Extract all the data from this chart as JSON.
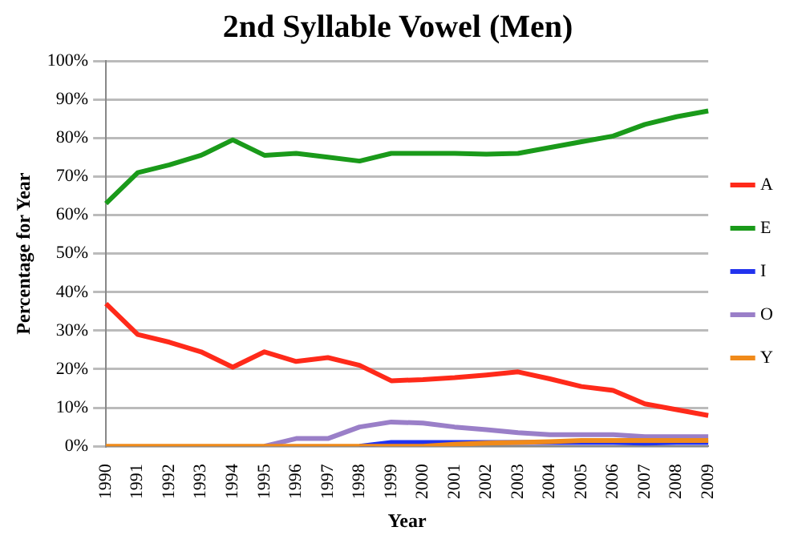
{
  "chart_data": {
    "type": "line",
    "title": "2nd Syllable Vowel (Men)",
    "xlabel": "Year",
    "ylabel": "Percentage for Year",
    "categories": [
      "1990",
      "1991",
      "1992",
      "1993",
      "1994",
      "1995",
      "1996",
      "1997",
      "1998",
      "1999",
      "2000",
      "2001",
      "2002",
      "2003",
      "2004",
      "2005",
      "2006",
      "2007",
      "2008",
      "2009"
    ],
    "series": [
      {
        "name": "A",
        "color": "#ff2a1a",
        "values": [
          37,
          29,
          27,
          24.5,
          20.5,
          24.5,
          22,
          23,
          21,
          17,
          17.3,
          17.8,
          18.5,
          19.3,
          17.5,
          15.5,
          14.5,
          11,
          9.5,
          8
        ]
      },
      {
        "name": "E",
        "color": "#1a9a1a",
        "values": [
          63,
          71,
          73,
          75.5,
          79.5,
          75.5,
          76,
          75,
          74,
          76,
          76,
          76,
          75.8,
          76,
          77.5,
          79,
          80.5,
          83.5,
          85.5,
          87
        ]
      },
      {
        "name": "I",
        "color": "#2233ee",
        "values": [
          null,
          null,
          null,
          null,
          null,
          null,
          null,
          null,
          0,
          1,
          1,
          1,
          1,
          1,
          1,
          1,
          1,
          0.8,
          1,
          1
        ]
      },
      {
        "name": "O",
        "color": "#9a7fc8",
        "values": [
          null,
          null,
          null,
          null,
          null,
          0,
          2,
          2,
          5,
          6.3,
          6,
          5,
          4.3,
          3.5,
          3,
          3,
          3,
          2.5,
          2.5,
          2.5
        ]
      },
      {
        "name": "Y",
        "color": "#f08a1a",
        "values": [
          0,
          0,
          0,
          0,
          0,
          0,
          0,
          0,
          0,
          0,
          0,
          0.5,
          0.8,
          1,
          1.2,
          1.5,
          1.5,
          1.5,
          1.5,
          1.5
        ]
      }
    ],
    "ylim": [
      0,
      100
    ],
    "yticks": [
      {
        "value": 0,
        "label": "0%"
      },
      {
        "value": 10,
        "label": "10%"
      },
      {
        "value": 20,
        "label": "20%"
      },
      {
        "value": 30,
        "label": "30%"
      },
      {
        "value": 40,
        "label": "40%"
      },
      {
        "value": 50,
        "label": "50%"
      },
      {
        "value": 60,
        "label": "60%"
      },
      {
        "value": 70,
        "label": "70%"
      },
      {
        "value": 80,
        "label": "80%"
      },
      {
        "value": 90,
        "label": "90%"
      },
      {
        "value": 100,
        "label": "100%"
      }
    ],
    "grid": "y",
    "legend": "right",
    "marker": "none",
    "line_style": "solid"
  }
}
